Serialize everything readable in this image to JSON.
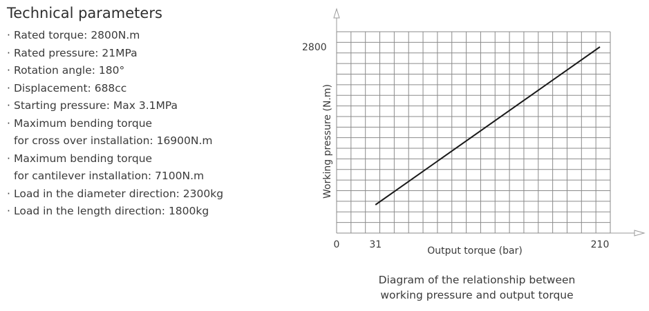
{
  "specs": {
    "title": "Technical parameters",
    "items": [
      {
        "lines": [
          "Rated torque: 2800N.m"
        ]
      },
      {
        "lines": [
          "Rated pressure: 21MPa"
        ]
      },
      {
        "lines": [
          "Rotation angle: 180°"
        ]
      },
      {
        "lines": [
          "Displacement: 688cc"
        ]
      },
      {
        "lines": [
          "Starting pressure:  Max 3.1MPa"
        ]
      },
      {
        "lines": [
          "Maximum bending torque",
          "for cross over installation: 16900N.m"
        ]
      },
      {
        "lines": [
          "Maximum bending torque",
          "for cantilever installation: 7100N.m"
        ]
      },
      {
        "lines": [
          "Load in the diameter direction: 2300kg"
        ]
      },
      {
        "lines": [
          "Load in the length direction: 1800kg"
        ]
      }
    ]
  },
  "chart_data": {
    "type": "line",
    "title": "",
    "xlabel": "Output torque (bar)",
    "ylabel": "Working pressure (N.m)",
    "xlim": [
      0,
      210
    ],
    "ylim": [
      0,
      2800
    ],
    "x_tick_labels": [
      "0",
      "31",
      "210"
    ],
    "y_tick_labels": [
      "2800"
    ],
    "grid": true,
    "series": [
      {
        "x": [
          31,
          210
        ],
        "y": [
          425,
          2800
        ]
      }
    ],
    "caption_lines": [
      "Diagram of the relationship between",
      "working pressure and output torque"
    ],
    "colors": {
      "grid": "#8a8a8a",
      "line": "#1a1a1a",
      "axis_arrow": "#9a9a9a",
      "text": "#3a3a3a"
    }
  }
}
